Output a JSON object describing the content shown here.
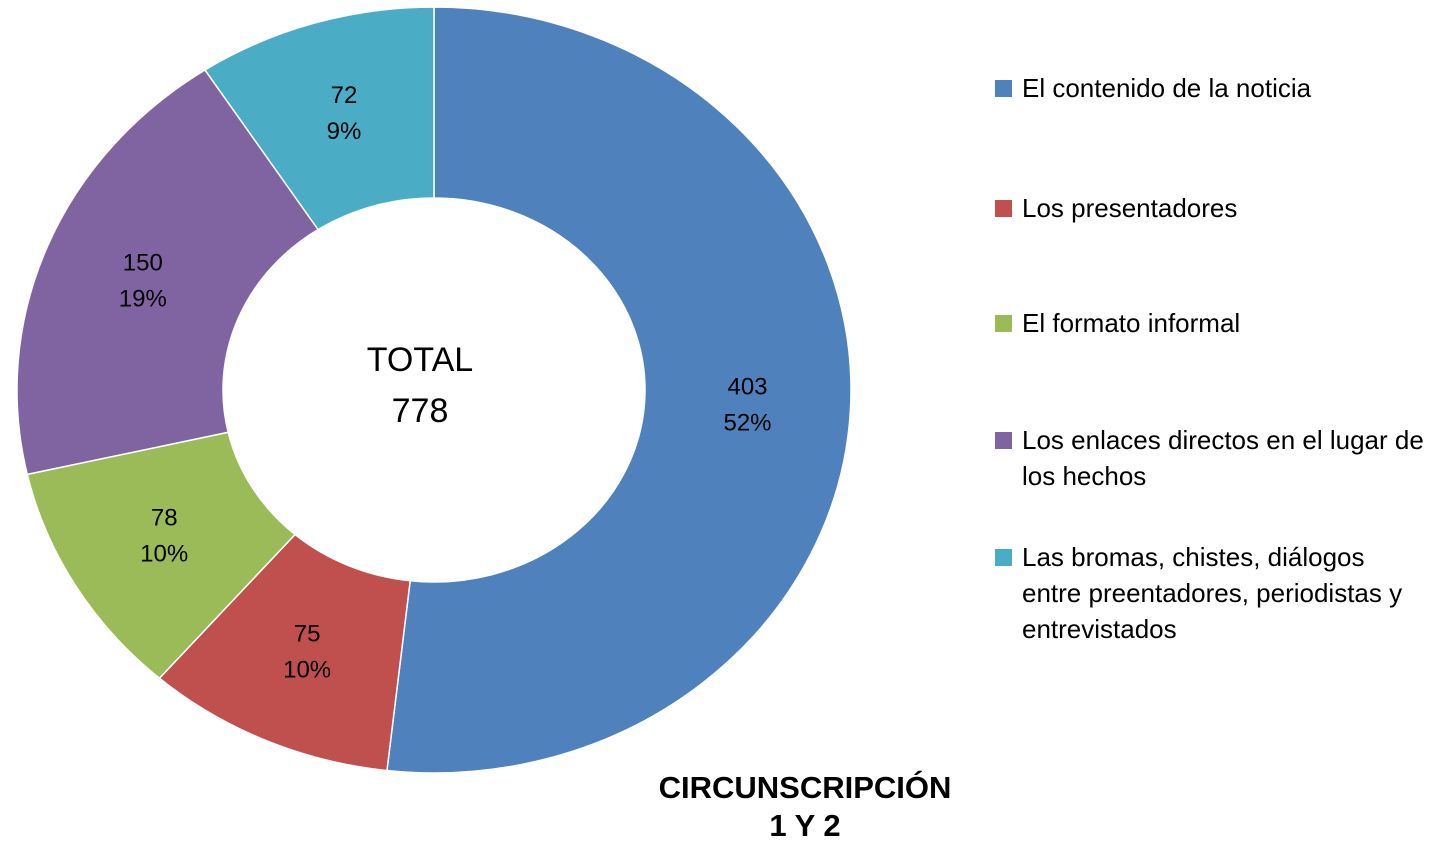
{
  "chart_data": {
    "type": "donut",
    "title": [
      "CIRCUNSCRIPCIÓN",
      "1 Y 2"
    ],
    "center_label": "TOTAL",
    "total": 778,
    "categories": [
      "El contenido de la noticia",
      "Los presentadores",
      "El formato informal",
      "Los enlaces directos en el lugar de los hechos",
      "Las bromas, chistes, diálogos entre preentadores, periodistas y entrevistados"
    ],
    "values": [
      403,
      75,
      78,
      150,
      72
    ],
    "percent_labels": [
      "52%",
      "10%",
      "10%",
      "19%",
      "9%"
    ],
    "colors": [
      "#4f81bd",
      "#c0504d",
      "#9bbb59",
      "#8064a2",
      "#4bacc6"
    ],
    "legend": "right"
  }
}
